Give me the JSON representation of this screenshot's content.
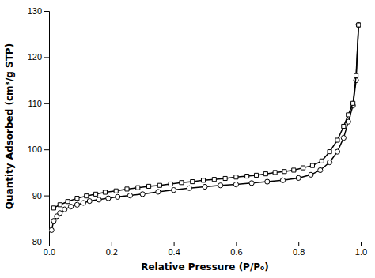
{
  "chart_data": {
    "type": "line",
    "title": "",
    "xlabel": "Relative Pressure (P/P₀)",
    "ylabel": "Quantity Adsorbed (cm³/g STP)",
    "xlim": [
      0.0,
      1.0
    ],
    "ylim": [
      80,
      130
    ],
    "xticks": [
      {
        "value": 0.0,
        "label": "0.0"
      },
      0.2,
      0.4,
      0.6,
      0.8,
      {
        "value": 1.0,
        "label": "1.0"
      }
    ],
    "yticks": [
      80,
      90,
      100,
      110,
      120,
      130
    ],
    "grid": false,
    "series": [
      {
        "color": "#000000",
        "marker": "circle",
        "x": [
          0.008,
          0.015,
          0.025,
          0.035,
          0.05,
          0.07,
          0.09,
          0.11,
          0.13,
          0.16,
          0.19,
          0.22,
          0.26,
          0.3,
          0.35,
          0.4,
          0.45,
          0.5,
          0.55,
          0.6,
          0.65,
          0.7,
          0.75,
          0.8,
          0.84,
          0.87,
          0.9,
          0.925,
          0.945,
          0.96,
          0.975,
          0.985,
          0.993
        ],
        "values": [
          82.5,
          84.5,
          85.5,
          86.2,
          87.0,
          87.6,
          88.0,
          88.4,
          88.8,
          89.1,
          89.4,
          89.7,
          90.0,
          90.3,
          90.8,
          91.2,
          91.6,
          91.9,
          92.2,
          92.4,
          92.7,
          93.0,
          93.3,
          93.8,
          94.5,
          95.5,
          97.2,
          99.5,
          102.5,
          106.0,
          109.5,
          115.0,
          127.0
        ]
      },
      {
        "color": "#000000",
        "marker": "square",
        "x": [
          0.993,
          0.985,
          0.975,
          0.96,
          0.945,
          0.925,
          0.9,
          0.875,
          0.845,
          0.815,
          0.785,
          0.755,
          0.725,
          0.695,
          0.665,
          0.635,
          0.6,
          0.565,
          0.53,
          0.495,
          0.46,
          0.425,
          0.39,
          0.355,
          0.32,
          0.285,
          0.25,
          0.215,
          0.18,
          0.15,
          0.12,
          0.09,
          0.06,
          0.035,
          0.015
        ],
        "values": [
          127.0,
          116.0,
          110.0,
          107.5,
          105.0,
          102.0,
          99.5,
          97.5,
          96.5,
          96.0,
          95.5,
          95.2,
          95.0,
          94.7,
          94.4,
          94.2,
          94.0,
          93.7,
          93.5,
          93.3,
          93.0,
          92.8,
          92.5,
          92.2,
          92.0,
          91.7,
          91.4,
          91.0,
          90.7,
          90.3,
          89.9,
          89.4,
          88.7,
          88.0,
          87.3
        ]
      }
    ]
  }
}
